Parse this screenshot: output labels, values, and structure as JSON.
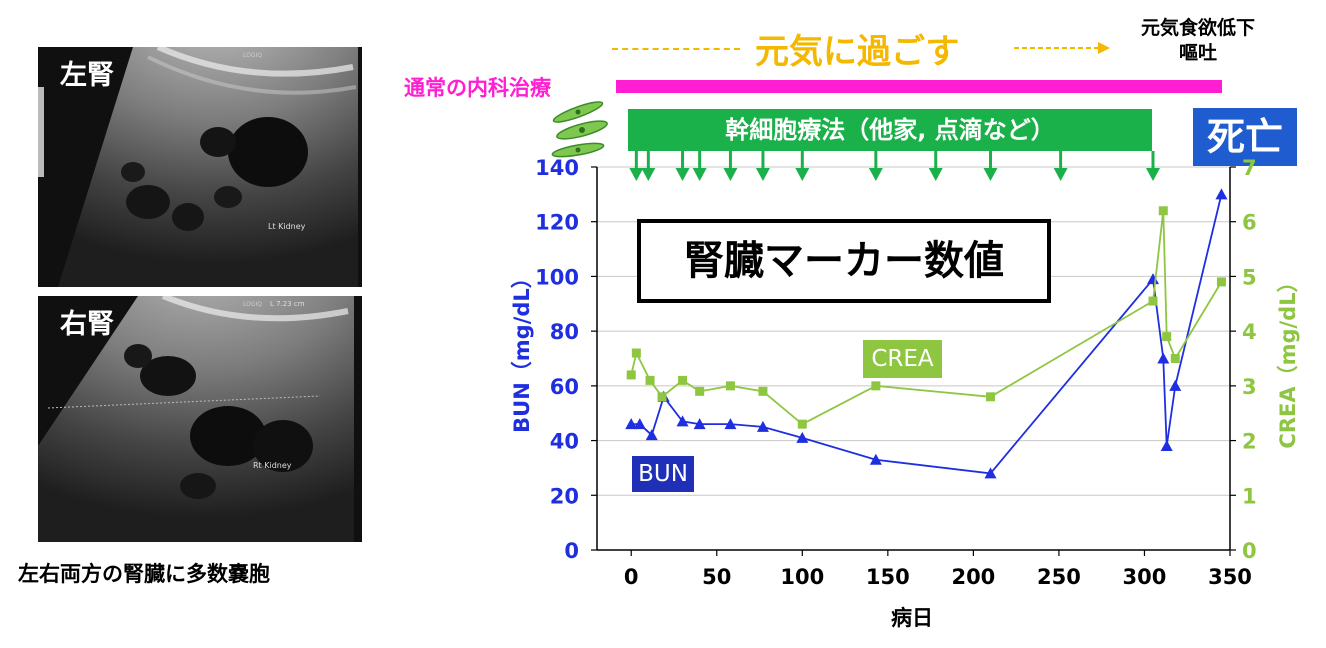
{
  "left_panel": {
    "left_kidney_label": "左腎",
    "right_kidney_label": "右腎",
    "caption": "左右両方の腎臓に多数嚢胞",
    "left_image_text": "Lt Kidney",
    "right_image_text": "Rt Kidney",
    "right_measure_text": "L 7.23 cm",
    "machine_text": "LOGIQ"
  },
  "timeline": {
    "status_main": "元気に過ごす",
    "status_late_line1": "元気食欲低下",
    "status_late_line2": "嘔吐",
    "medical_label": "通常の内科治療",
    "stem_cell_label": "幹細胞療法（他家, 点滴など）",
    "death_label": "死亡",
    "stem_cell_days": [
      3,
      10,
      30,
      40,
      58,
      77,
      100,
      143,
      178,
      210,
      251,
      305
    ],
    "colors": {
      "medical": "#ff1ed2",
      "stem": "#1ab04a",
      "status": "#f5b800",
      "death": "#1e5ccf"
    }
  },
  "chart_data": {
    "type": "line",
    "title": "腎臓マーカー数値",
    "xlabel": "病日",
    "ylabel_left": "BUN（mg/dL）",
    "ylabel_right": "CREA（mg/dL）",
    "xlim": [
      -20,
      350
    ],
    "xticks": [
      0,
      50,
      100,
      150,
      200,
      250,
      300,
      350
    ],
    "ylim_left": [
      0,
      140
    ],
    "yticks_left": [
      0,
      20,
      40,
      60,
      80,
      100,
      120,
      140
    ],
    "ylim_right": [
      0,
      7
    ],
    "yticks_right": [
      0,
      1,
      2,
      3,
      4,
      5,
      6,
      7
    ],
    "grid": "horizontal",
    "series": [
      {
        "name": "BUN",
        "axis": "left",
        "color": "#1f2fe0",
        "marker": "triangle",
        "x": [
          0,
          5,
          12,
          19,
          30,
          40,
          58,
          77,
          100,
          143,
          210,
          305,
          311,
          313,
          318,
          345
        ],
        "y": [
          46,
          46,
          42,
          56,
          47,
          46,
          46,
          45,
          41,
          33,
          28,
          99,
          70,
          38,
          60,
          130
        ]
      },
      {
        "name": "CREA",
        "axis": "right",
        "color": "#8ec641",
        "marker": "square",
        "x": [
          0,
          3,
          11,
          18,
          30,
          40,
          58,
          77,
          100,
          143,
          210,
          305,
          311,
          313,
          318,
          345
        ],
        "y": [
          3.2,
          3.6,
          3.1,
          2.8,
          3.1,
          2.9,
          3.0,
          2.9,
          2.3,
          3.0,
          2.8,
          4.55,
          6.2,
          3.9,
          3.5,
          4.9
        ]
      }
    ]
  }
}
